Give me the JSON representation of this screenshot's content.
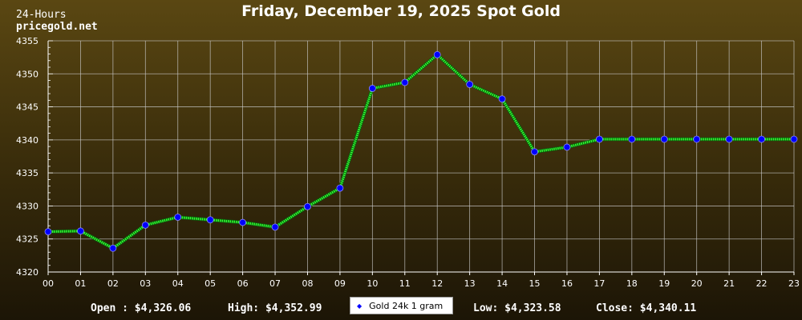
{
  "header": {
    "title": "Friday, December 19, 2025 Spot Gold",
    "subtitle_line1": "24-Hours",
    "subtitle_line2": "pricegold.net"
  },
  "stats": {
    "open": "Open : $4,326.06",
    "high": "High: $4,352.99",
    "low": "Low: $4,323.58",
    "close": "Close: $4,340.11"
  },
  "colors": {
    "line": "#33ff33",
    "marker": "#0000ff",
    "grid": "#c8c8c8",
    "axis": "#ffffff"
  },
  "chart_data": {
    "type": "line",
    "title": "Friday, December 19, 2025 Spot Gold",
    "x": [
      "00",
      "01",
      "02",
      "03",
      "04",
      "05",
      "06",
      "07",
      "08",
      "09",
      "10",
      "11",
      "12",
      "13",
      "14",
      "15",
      "16",
      "17",
      "18",
      "19",
      "20",
      "21",
      "22",
      "23"
    ],
    "ylim": [
      4320,
      4355
    ],
    "yticks": [
      4320,
      4325,
      4330,
      4335,
      4340,
      4345,
      4350,
      4355
    ],
    "grid": true,
    "legend_position": "bottom-center",
    "series": [
      {
        "name": "Gold 24k 1 gram",
        "values": [
          4326.1,
          4326.2,
          4323.6,
          4327.1,
          4328.3,
          4327.9,
          4327.5,
          4326.8,
          4329.9,
          4332.7,
          4347.8,
          4348.7,
          4352.9,
          4348.4,
          4346.2,
          4338.2,
          4338.9,
          4340.1,
          4340.1,
          4340.1,
          4340.1,
          4340.1,
          4340.1,
          4340.1
        ]
      }
    ]
  }
}
